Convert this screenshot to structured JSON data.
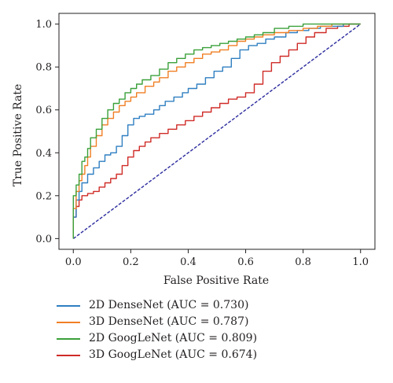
{
  "chart_data": {
    "type": "line",
    "title": "",
    "xlabel": "False Positive Rate",
    "ylabel": "True Positive Rate",
    "xlim": [
      -0.05,
      1.05
    ],
    "ylim": [
      -0.05,
      1.05
    ],
    "xticks": [
      0.0,
      0.2,
      0.4,
      0.6,
      0.8,
      1.0
    ],
    "yticks": [
      0.0,
      0.2,
      0.4,
      0.6,
      0.8,
      1.0
    ],
    "xtick_labels": [
      "0.0",
      "0.2",
      "0.4",
      "0.6",
      "0.8",
      "1.0"
    ],
    "ytick_labels": [
      "0.0",
      "0.2",
      "0.4",
      "0.6",
      "0.8",
      "1.0"
    ],
    "grid": false,
    "legend_position": "below",
    "series": [
      {
        "name": "2D DenseNet (AUC = 0.730)",
        "color": "#2f7fc1",
        "x": [
          0.0,
          0.01,
          0.02,
          0.03,
          0.05,
          0.07,
          0.09,
          0.11,
          0.13,
          0.15,
          0.17,
          0.19,
          0.21,
          0.23,
          0.25,
          0.28,
          0.3,
          0.32,
          0.35,
          0.38,
          0.4,
          0.43,
          0.46,
          0.49,
          0.52,
          0.55,
          0.58,
          0.61,
          0.64,
          0.67,
          0.7,
          0.74,
          0.78,
          0.82,
          0.86,
          0.9,
          0.94,
          0.98,
          1.0
        ],
        "y": [
          0.0,
          0.1,
          0.18,
          0.22,
          0.26,
          0.3,
          0.33,
          0.36,
          0.39,
          0.4,
          0.43,
          0.48,
          0.53,
          0.56,
          0.57,
          0.58,
          0.6,
          0.62,
          0.64,
          0.66,
          0.68,
          0.7,
          0.72,
          0.75,
          0.78,
          0.8,
          0.84,
          0.88,
          0.9,
          0.91,
          0.93,
          0.94,
          0.96,
          0.97,
          0.98,
          0.99,
          0.99,
          1.0,
          1.0
        ]
      },
      {
        "name": "3D DenseNet (AUC = 0.787)",
        "color": "#f07f24",
        "x": [
          0.0,
          0.01,
          0.02,
          0.03,
          0.04,
          0.05,
          0.06,
          0.08,
          0.1,
          0.12,
          0.14,
          0.16,
          0.18,
          0.2,
          0.22,
          0.25,
          0.28,
          0.3,
          0.33,
          0.36,
          0.39,
          0.42,
          0.45,
          0.48,
          0.51,
          0.54,
          0.57,
          0.6,
          0.63,
          0.66,
          0.7,
          0.75,
          0.8,
          0.85,
          0.9,
          0.95,
          1.0
        ],
        "y": [
          0.0,
          0.14,
          0.22,
          0.27,
          0.3,
          0.34,
          0.38,
          0.43,
          0.48,
          0.53,
          0.56,
          0.59,
          0.62,
          0.64,
          0.66,
          0.68,
          0.71,
          0.73,
          0.75,
          0.78,
          0.8,
          0.82,
          0.84,
          0.86,
          0.87,
          0.88,
          0.9,
          0.92,
          0.93,
          0.94,
          0.95,
          0.96,
          0.97,
          0.98,
          0.99,
          1.0,
          1.0
        ]
      },
      {
        "name": "2D GoogLeNet (AUC = 0.809)",
        "color": "#3aa03a",
        "x": [
          0.0,
          0.01,
          0.02,
          0.03,
          0.04,
          0.05,
          0.06,
          0.08,
          0.1,
          0.12,
          0.14,
          0.16,
          0.18,
          0.2,
          0.22,
          0.24,
          0.27,
          0.3,
          0.33,
          0.36,
          0.39,
          0.42,
          0.45,
          0.48,
          0.51,
          0.54,
          0.57,
          0.6,
          0.63,
          0.66,
          0.7,
          0.75,
          0.8,
          0.85,
          0.9,
          0.95,
          1.0
        ],
        "y": [
          0.0,
          0.2,
          0.25,
          0.3,
          0.36,
          0.38,
          0.42,
          0.47,
          0.51,
          0.56,
          0.6,
          0.63,
          0.65,
          0.68,
          0.7,
          0.72,
          0.74,
          0.76,
          0.79,
          0.82,
          0.84,
          0.86,
          0.88,
          0.89,
          0.9,
          0.91,
          0.92,
          0.93,
          0.94,
          0.95,
          0.96,
          0.98,
          0.99,
          1.0,
          1.0,
          1.0,
          1.0
        ]
      },
      {
        "name": "3D GoogLeNet (AUC = 0.674)",
        "color": "#cf2b27",
        "x": [
          0.0,
          0.01,
          0.02,
          0.03,
          0.05,
          0.07,
          0.09,
          0.11,
          0.13,
          0.15,
          0.17,
          0.19,
          0.21,
          0.23,
          0.25,
          0.27,
          0.3,
          0.33,
          0.36,
          0.39,
          0.42,
          0.45,
          0.48,
          0.51,
          0.54,
          0.57,
          0.6,
          0.63,
          0.66,
          0.69,
          0.72,
          0.75,
          0.78,
          0.81,
          0.84,
          0.88,
          0.92,
          0.96,
          1.0
        ],
        "y": [
          0.0,
          0.1,
          0.15,
          0.18,
          0.2,
          0.21,
          0.22,
          0.24,
          0.26,
          0.28,
          0.3,
          0.34,
          0.38,
          0.41,
          0.43,
          0.45,
          0.47,
          0.49,
          0.51,
          0.53,
          0.55,
          0.57,
          0.59,
          0.61,
          0.63,
          0.65,
          0.66,
          0.68,
          0.72,
          0.78,
          0.82,
          0.85,
          0.88,
          0.91,
          0.94,
          0.96,
          0.98,
          0.99,
          1.0
        ]
      },
      {
        "name": "",
        "color": "#2b2b9e",
        "dashed": true,
        "x": [
          0.0,
          1.0
        ],
        "y": [
          0.0,
          1.0
        ]
      }
    ]
  }
}
